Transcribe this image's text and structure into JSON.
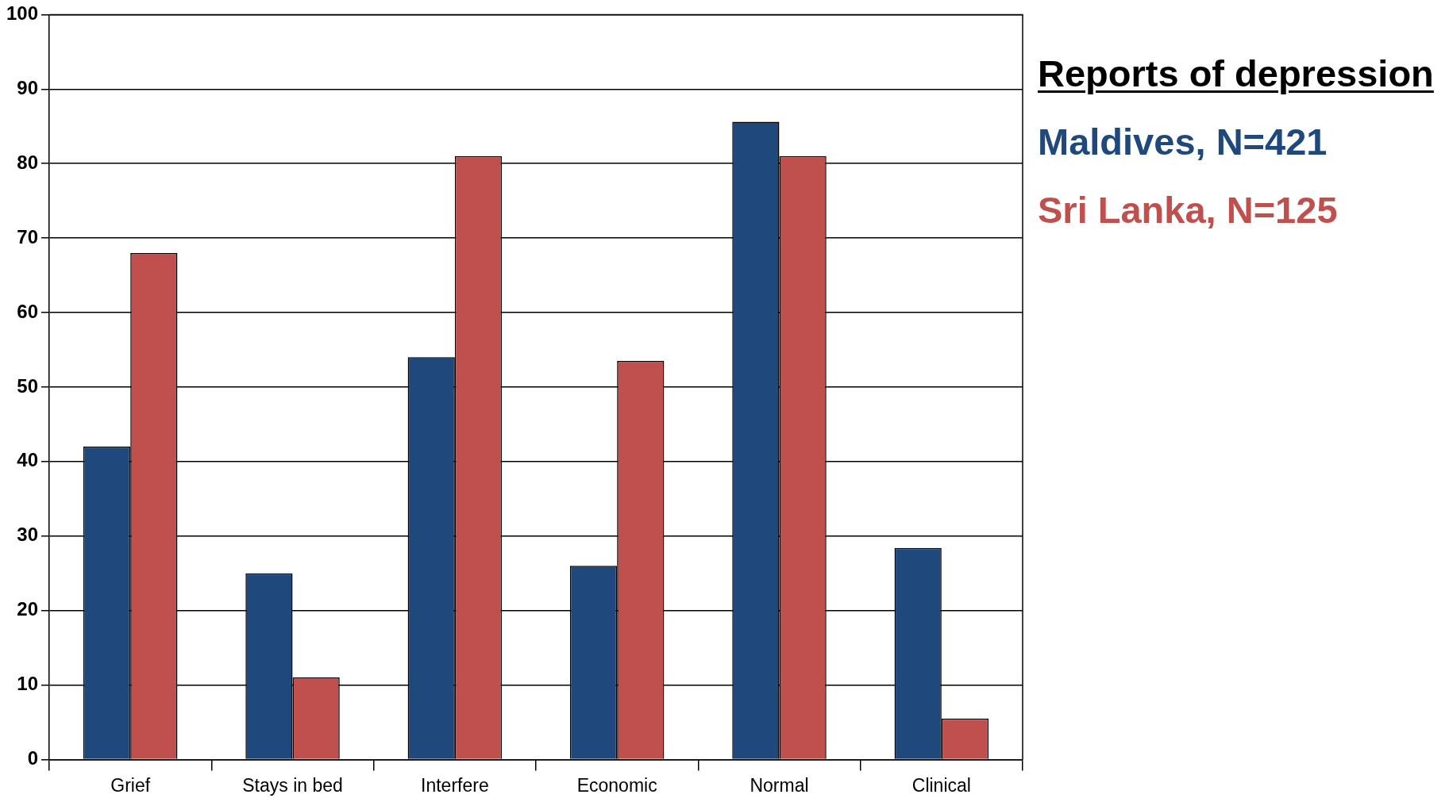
{
  "chart_data": {
    "type": "bar",
    "legend_title": "Reports of depression",
    "categories": [
      "Grief",
      "Stays in bed",
      "Interfere",
      "Economic",
      "Normal",
      "Clinical"
    ],
    "series": [
      {
        "name": "Maldives, N=421",
        "color": "#1f497d",
        "values": [
          42,
          25,
          54,
          26,
          85.6,
          28.4
        ]
      },
      {
        "name": "Sri Lanka, N=125",
        "color": "#c0504d",
        "values": [
          68,
          11,
          81,
          53.5,
          81,
          5.5
        ]
      }
    ],
    "ylim": [
      0,
      100
    ],
    "yticks": [
      0,
      10,
      20,
      30,
      40,
      50,
      60,
      70,
      80,
      90,
      100
    ],
    "grid": "y",
    "legend": "right"
  }
}
